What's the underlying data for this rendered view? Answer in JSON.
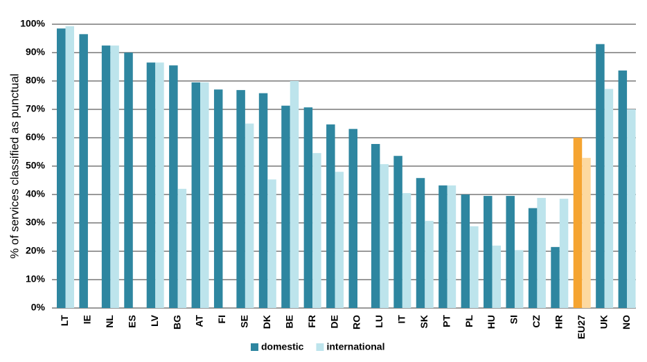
{
  "chart_data": {
    "type": "bar",
    "y_label": "% of services classified as punctual",
    "categories": [
      "LT",
      "IE",
      "NL",
      "ES",
      "LV",
      "BG",
      "AT",
      "FI",
      "SE",
      "DK",
      "BE",
      "FR",
      "DE",
      "RO",
      "LU",
      "IT",
      "SK",
      "PT",
      "PL",
      "HU",
      "SI",
      "CZ",
      "HR",
      "EU27",
      "UK",
      "NO"
    ],
    "series": [
      {
        "name": "domestic",
        "color": "#2e86a0",
        "colors": [
          "#2e86a0",
          "#2e86a0",
          "#2e86a0",
          "#2e86a0",
          "#2e86a0",
          "#2e86a0",
          "#2e86a0",
          "#2e86a0",
          "#2e86a0",
          "#2e86a0",
          "#2e86a0",
          "#2e86a0",
          "#2e86a0",
          "#2e86a0",
          "#2e86a0",
          "#2e86a0",
          "#2e86a0",
          "#2e86a0",
          "#2e86a0",
          "#2e86a0",
          "#2e86a0",
          "#2e86a0",
          "#2e86a0",
          "#f5a431",
          "#2e86a0",
          "#2e86a0"
        ],
        "values": [
          98.5,
          96.5,
          92.5,
          90,
          86.5,
          85.5,
          79.5,
          77,
          76.8,
          75.7,
          71.3,
          70.7,
          64.7,
          63.1,
          57.8,
          53.6,
          45.8,
          43.2,
          40,
          39.5,
          39.5,
          35.2,
          21.5,
          60,
          93,
          83.7
        ]
      },
      {
        "name": "international",
        "color": "#bde4ec",
        "colors": [
          "#bde4ec",
          "#bde4ec",
          "#bde4ec",
          "#bde4ec",
          "#bde4ec",
          "#bde4ec",
          "#bde4ec",
          "#bde4ec",
          "#bde4ec",
          "#bde4ec",
          "#bde4ec",
          "#bde4ec",
          "#bde4ec",
          "#bde4ec",
          "#bde4ec",
          "#bde4ec",
          "#bde4ec",
          "#bde4ec",
          "#bde4ec",
          "#bde4ec",
          "#bde4ec",
          "#bde4ec",
          "#bde4ec",
          "#fdd9a0",
          "#bde4ec",
          "#bde4ec"
        ],
        "values": [
          99.3,
          null,
          92.5,
          null,
          86.5,
          42,
          79.5,
          null,
          65,
          45.3,
          80,
          54.6,
          48,
          null,
          50.7,
          40.5,
          30.7,
          43.2,
          28.8,
          22,
          20.4,
          38.8,
          38.5,
          52.9,
          77.2,
          70
        ]
      }
    ],
    "ylim": [
      0,
      100
    ],
    "yticks": [
      {
        "value": 0,
        "label": "0%"
      },
      {
        "value": 10,
        "label": "10%"
      },
      {
        "value": 20,
        "label": "20%"
      },
      {
        "value": 30,
        "label": "30%"
      },
      {
        "value": 40,
        "label": "40%"
      },
      {
        "value": 50,
        "label": "50%"
      },
      {
        "value": 60,
        "label": "60%"
      },
      {
        "value": 70,
        "label": "70%"
      },
      {
        "value": 80,
        "label": "80%"
      },
      {
        "value": 90,
        "label": "90%"
      },
      {
        "value": 100,
        "label": "100%"
      }
    ],
    "grid": true,
    "legend": "bottom"
  }
}
